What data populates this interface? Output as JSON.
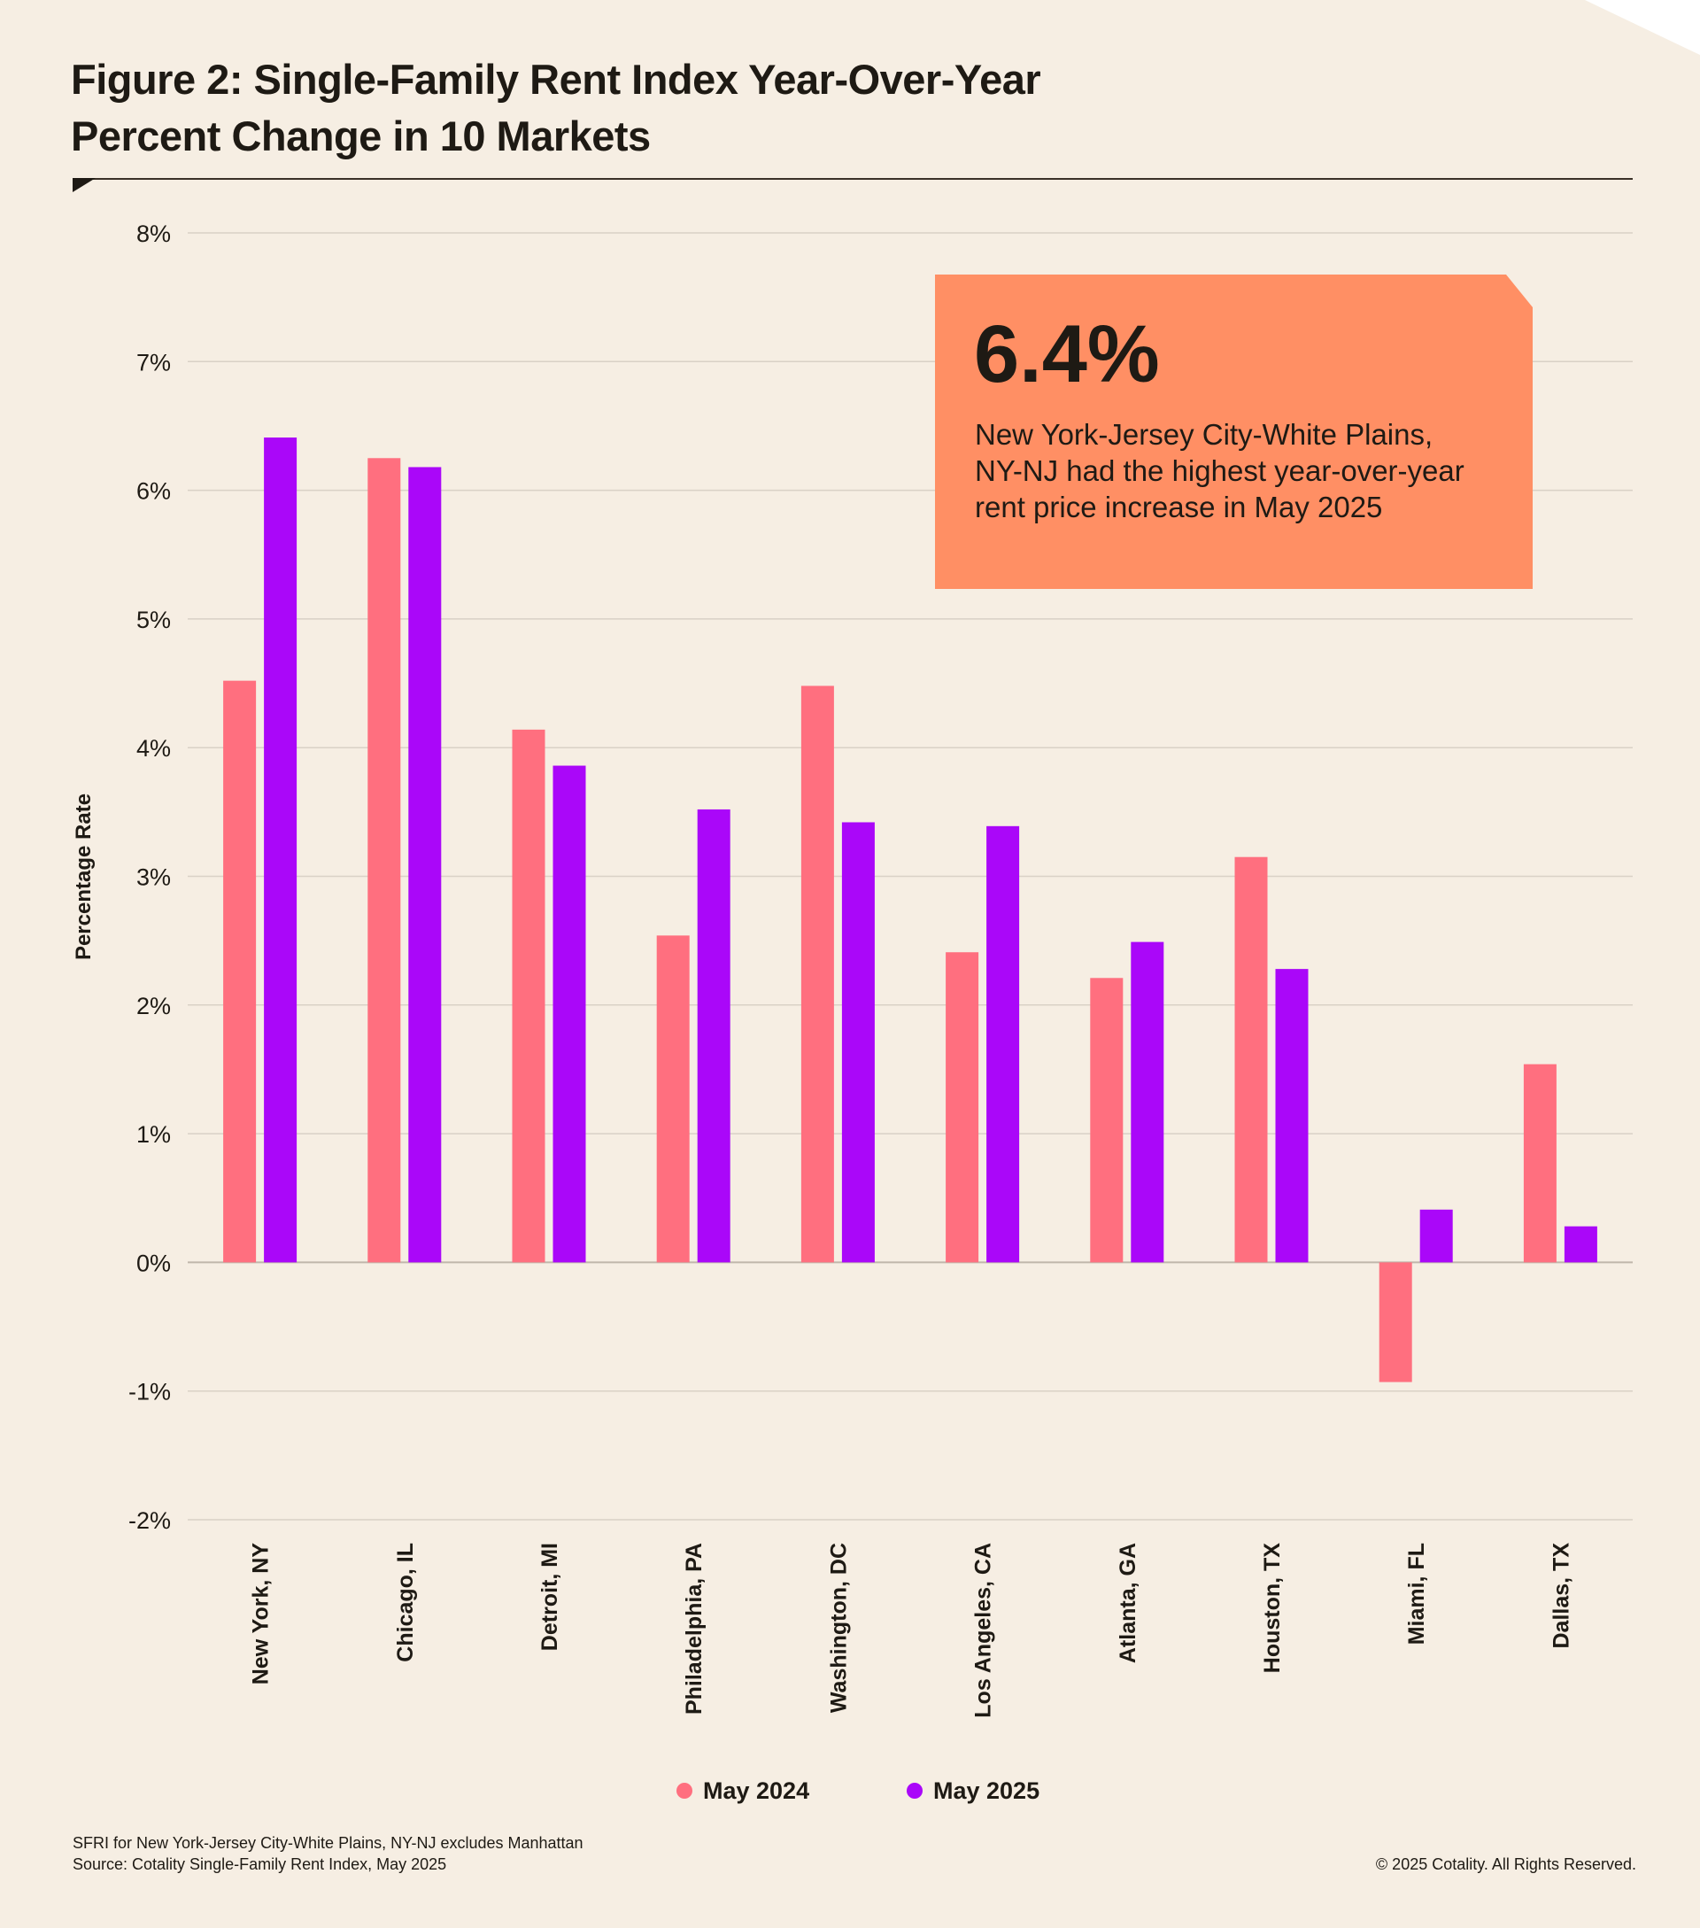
{
  "title": {
    "line1": "Figure 2: Single-Family Rent Index Year-Over-Year",
    "line2": "Percent Change in 10 Markets"
  },
  "callout": {
    "value": "6.4%",
    "text": "New York-Jersey City-White Plains, NY-NJ had the highest year-over-year rent price increase in May 2025"
  },
  "footnote": {
    "line1": "SFRI for New York-Jersey City-White Plains, NY-NJ excludes Manhattan",
    "line2": "Source: Cotality Single-Family Rent Index, May 2025"
  },
  "copyright": "© 2025 Cotality. All Rights Reserved.",
  "colors": {
    "may2024": "#ff6f7f",
    "may2025": "#aa07f9",
    "grid": "#d9d1c6",
    "text": "#1e1a14"
  },
  "chart_data": {
    "type": "bar",
    "title": "Figure 2: Single-Family Rent Index Year-Over-Year Percent Change in 10 Markets",
    "xlabel": "",
    "ylabel": "Percentage Rate",
    "ylim": [
      -2,
      8
    ],
    "yticks": [
      -2,
      -1,
      0,
      1,
      2,
      3,
      4,
      5,
      6,
      7,
      8
    ],
    "ytick_labels": [
      "-2%",
      "-1%",
      "0%",
      "1%",
      "2%",
      "3%",
      "4%",
      "5%",
      "6%",
      "7%",
      "8%"
    ],
    "grid": true,
    "legend_position": "bottom-center",
    "categories": [
      "New York, NY",
      "Chicago, IL",
      "Detroit, MI",
      "Philadelphia, PA",
      "Washington, DC",
      "Los Angeles, CA",
      "Atlanta, GA",
      "Houston, TX",
      "Miami, FL",
      "Dallas, TX"
    ],
    "series": [
      {
        "name": "May 2024",
        "values": [
          4.52,
          6.25,
          4.14,
          2.54,
          4.48,
          2.41,
          2.21,
          3.15,
          -0.93,
          1.54
        ]
      },
      {
        "name": "May 2025",
        "values": [
          6.41,
          6.18,
          3.86,
          3.52,
          3.42,
          3.39,
          2.49,
          2.28,
          0.41,
          0.28
        ]
      }
    ]
  }
}
